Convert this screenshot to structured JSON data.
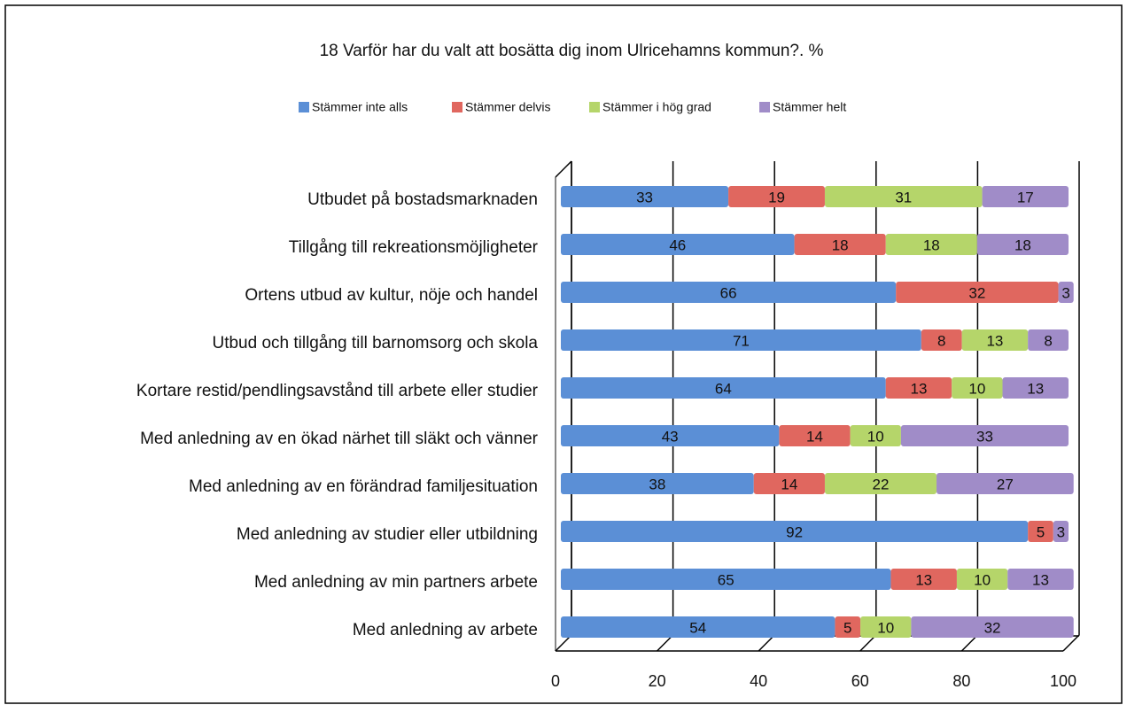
{
  "chart_data": {
    "type": "stacked-bar-horizontal",
    "title": "18 Varför har du valt att bosätta dig inom Ulricehamns kommun?. %",
    "categories": [
      "Utbudet på bostadsmarknaden",
      "Tillgång till rekreationsmöjligheter",
      "Ortens utbud av kultur, nöje och handel",
      "Utbud och tillgång till barnomsorg och skola",
      "Kortare restid/pendlingsavstånd till arbete eller studier",
      "Med anledning av en ökad närhet till släkt och vänner",
      "Med anledning av en förändrad familjesituation",
      "Med anledning av studier eller utbildning",
      "Med anledning av min partners arbete",
      "Med anledning av arbete"
    ],
    "series": [
      {
        "name": "Stämmer inte alls",
        "color": "#5b8fd6",
        "values": [
          33,
          46,
          66,
          71,
          64,
          43,
          38,
          92,
          65,
          54
        ]
      },
      {
        "name": "Stämmer delvis",
        "color": "#e0675f",
        "values": [
          19,
          18,
          32,
          8,
          13,
          14,
          14,
          5,
          13,
          5
        ]
      },
      {
        "name": "Stämmer i hög grad",
        "color": "#b5d56a",
        "values": [
          31,
          18,
          null,
          13,
          10,
          10,
          22,
          null,
          10,
          10
        ]
      },
      {
        "name": "Stämmer helt",
        "color": "#a08cc8",
        "values": [
          17,
          18,
          3,
          8,
          13,
          33,
          27,
          3,
          13,
          32
        ]
      }
    ],
    "xlim": [
      0,
      100
    ],
    "xticks": [
      0,
      20,
      40,
      60,
      80,
      100
    ],
    "grid": true,
    "legend": "top"
  }
}
